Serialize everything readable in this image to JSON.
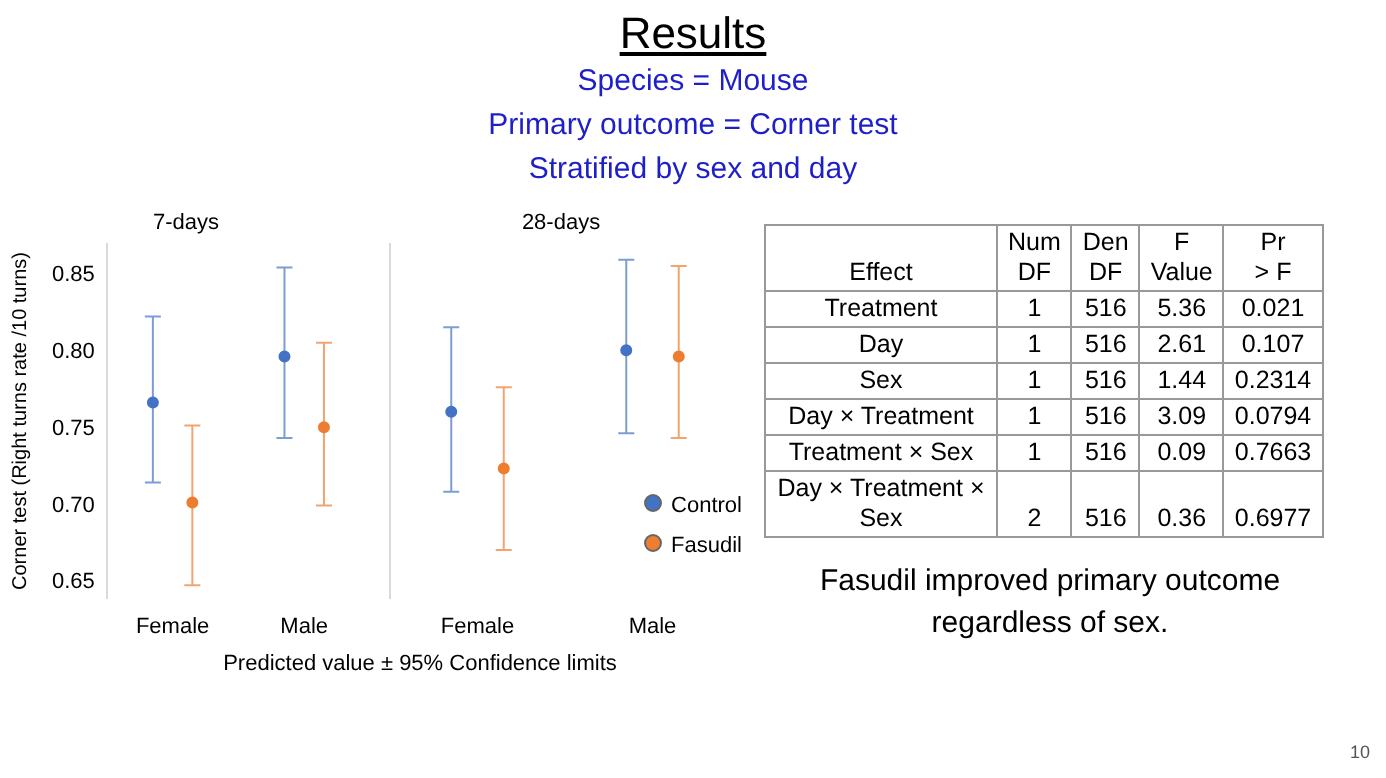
{
  "chart_data": [
    {
      "type": "other",
      "title": "Results",
      "annotations": [
        "Species = Mouse",
        "Primary outcome = Corner test",
        "Stratified by sex and day",
        "10"
      ]
    },
    {
      "type": "scatter",
      "title": "7-days",
      "ylabel": "Corner test (Right turns rate /10 turns)",
      "categories": [
        "Female",
        "Male"
      ],
      "ylim": [
        0.64,
        0.87
      ],
      "yticks": [
        0.65,
        {
          "value": 0.7,
          "label": "0.70"
        },
        0.75,
        {
          "value": 0.8,
          "label": "0.80"
        },
        0.85
      ],
      "grid": false,
      "legend": false,
      "marker": "circle",
      "annotations": [
        "Predicted value ± 95% Confidence limits"
      ],
      "series": [
        {
          "color": "#4472c4",
          "values": [
            0.767,
            0.797
          ],
          "errors": [
            [
              0.715,
              0.823
            ],
            [
              0.744,
              0.855
            ]
          ]
        },
        {
          "color": "#ed7d31",
          "values": [
            0.702,
            0.751
          ],
          "errors": [
            [
              0.648,
              0.752
            ],
            [
              0.7,
              0.806
            ]
          ]
        }
      ]
    },
    {
      "type": "scatter",
      "title": "28-days",
      "categories": [
        "Female",
        "Male"
      ],
      "ylim": [
        0.64,
        0.87
      ],
      "yticks": [
        0.65,
        0.7,
        0.75,
        0.8,
        0.85
      ],
      "grid": false,
      "legend": "bottom right",
      "marker": "circle",
      "tick_labels": "x",
      "series": [
        {
          "name": "Control",
          "color": "#4472c4",
          "values": [
            0.761,
            0.801
          ],
          "errors": [
            [
              0.709,
              0.816
            ],
            [
              0.747,
              0.86
            ]
          ]
        },
        {
          "name": "Fasudil",
          "color": "#ed7d31",
          "values": [
            0.724,
            0.797
          ],
          "errors": [
            [
              0.671,
              0.777
            ],
            [
              0.744,
              0.856
            ]
          ]
        }
      ]
    },
    {
      "type": "other",
      "categories": [
        "Effect",
        "Num DF",
        "Den DF",
        "F Value",
        "Pr > F"
      ],
      "y_categories": [
        "Treatment",
        "Day",
        "Sex",
        "Day × Treatment",
        "Treatment × Sex",
        "Day × Treatment × Sex"
      ],
      "cell_labels": [
        [
          "1",
          "516",
          "5.36",
          "0.021"
        ],
        [
          "1",
          "516",
          "2.61",
          "0.107"
        ],
        [
          "1",
          "516",
          "1.44",
          "0.2314"
        ],
        [
          "1",
          "516",
          "3.09",
          "0.0794"
        ],
        [
          "1",
          "516",
          "0.09",
          "0.7663"
        ],
        [
          "2",
          "516",
          "0.36",
          "0.6977"
        ]
      ],
      "annotations": [
        "Fasudil improved primary outcome regardless of sex."
      ]
    }
  ]
}
